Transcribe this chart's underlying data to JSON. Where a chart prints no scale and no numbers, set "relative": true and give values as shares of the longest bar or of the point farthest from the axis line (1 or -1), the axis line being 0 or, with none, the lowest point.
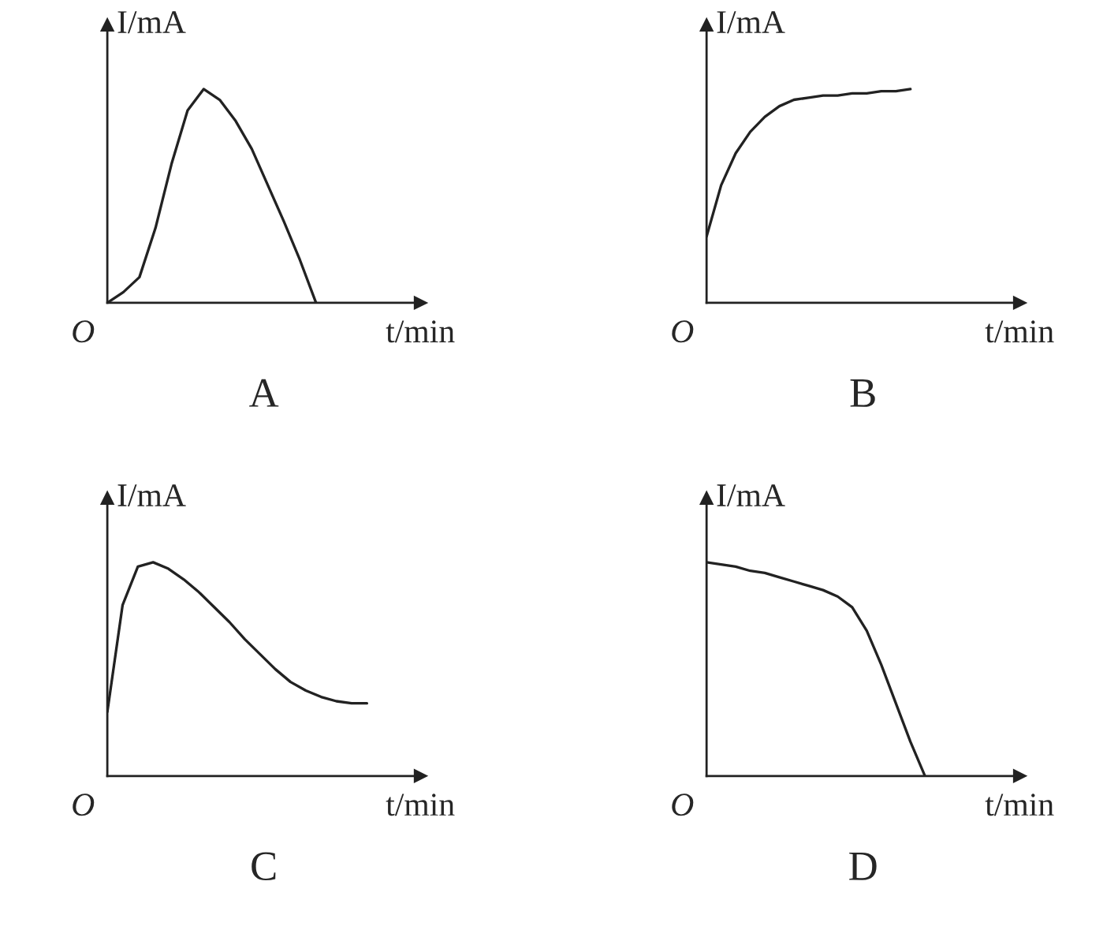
{
  "chart_data": [
    {
      "type": "line",
      "relative": true,
      "title": "A",
      "xlabel": "t/min",
      "ylabel": "I/mA",
      "annotations": [
        "O"
      ],
      "categories": [
        null,
        null,
        null,
        null,
        null,
        null,
        null,
        null,
        null,
        null,
        null,
        null,
        null,
        null,
        null,
        null,
        null,
        null,
        null
      ],
      "series": [
        {
          "color": "#222222",
          "values": [
            0,
            0.05,
            0.12,
            0.35,
            0.65,
            0.9,
            1.0,
            0.95,
            0.85,
            0.72,
            0.55,
            0.38,
            0.2,
            0,
            null,
            null,
            null,
            null,
            null
          ]
        }
      ]
    },
    {
      "type": "line",
      "relative": true,
      "title": "B",
      "xlabel": "t/min",
      "ylabel": "I/mA",
      "annotations": [
        "O"
      ],
      "categories": [
        null,
        null,
        null,
        null,
        null,
        null,
        null,
        null,
        null,
        null,
        null,
        null,
        null,
        null,
        null,
        null,
        null,
        null,
        null,
        null,
        null
      ],
      "series": [
        {
          "color": "#222222",
          "values": [
            0.31,
            0.55,
            0.7,
            0.8,
            0.87,
            0.92,
            0.95,
            0.96,
            0.97,
            0.97,
            0.98,
            0.98,
            0.99,
            0.99,
            1.0,
            null,
            null,
            null,
            null,
            null,
            null
          ]
        }
      ]
    },
    {
      "type": "line",
      "relative": true,
      "title": "C",
      "xlabel": "t/min",
      "ylabel": "I/mA",
      "annotations": [
        "O"
      ],
      "categories": [
        null,
        null,
        null,
        null,
        null,
        null,
        null,
        null,
        null,
        null,
        null,
        null,
        null,
        null,
        null,
        null,
        null,
        null,
        null,
        null
      ],
      "series": [
        {
          "color": "#222222",
          "values": [
            0.3,
            0.8,
            0.98,
            1.0,
            0.97,
            0.92,
            0.86,
            0.79,
            0.72,
            0.64,
            0.57,
            0.5,
            0.44,
            0.4,
            0.37,
            0.35,
            0.34,
            0.34,
            null,
            null
          ]
        }
      ]
    },
    {
      "type": "line",
      "relative": true,
      "title": "D",
      "xlabel": "t/min",
      "ylabel": "I/mA",
      "annotations": [
        "O"
      ],
      "categories": [
        null,
        null,
        null,
        null,
        null,
        null,
        null,
        null,
        null,
        null,
        null,
        null,
        null,
        null,
        null,
        null,
        null,
        null,
        null,
        null,
        null
      ],
      "series": [
        {
          "color": "#222222",
          "values": [
            1.0,
            0.99,
            0.98,
            0.96,
            0.95,
            0.93,
            0.91,
            0.89,
            0.87,
            0.84,
            0.79,
            0.68,
            0.52,
            0.34,
            0.16,
            0,
            null,
            null,
            null,
            null,
            null
          ]
        }
      ]
    }
  ]
}
